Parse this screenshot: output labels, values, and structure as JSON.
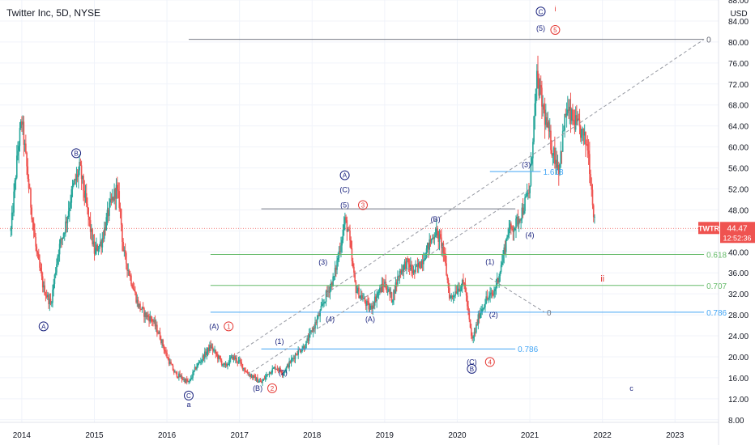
{
  "chart_data": {
    "type": "candlestick",
    "title": "Twitter Inc, 5D, NYSE",
    "currency": "USD",
    "symbol": "TWTR",
    "last_price": "44.47",
    "countdown": "12:52:36",
    "colors": {
      "up": "#26a69a",
      "down": "#ef5350",
      "grid": "#f0f3fa",
      "fib_green": "#66bb6a",
      "fib_blue": "#42a5f5",
      "fib_gray": "#787b86",
      "wave_blue": "#1a237e",
      "wave_red": "#e53935",
      "price_tag": "#ef5350"
    },
    "xlim": [
      2013.7,
      2023.6
    ],
    "ylim": [
      7.5,
      88
    ],
    "x_ticks": [
      {
        "label": "2014",
        "x": 2014.0
      },
      {
        "label": "2015",
        "x": 2015.0
      },
      {
        "label": "2016",
        "x": 2016.0
      },
      {
        "label": "2017",
        "x": 2017.0
      },
      {
        "label": "2018",
        "x": 2018.0
      },
      {
        "label": "2019",
        "x": 2019.0
      },
      {
        "label": "2020",
        "x": 2020.0
      },
      {
        "label": "2021",
        "x": 2021.0
      },
      {
        "label": "2022",
        "x": 2022.0
      },
      {
        "label": "2023",
        "x": 2023.0
      }
    ],
    "y_ticks": [
      "8.00",
      "12.00",
      "16.00",
      "20.00",
      "24.00",
      "28.00",
      "32.00",
      "36.00",
      "40.00",
      "44.00",
      "48.00",
      "52.00",
      "56.00",
      "60.00",
      "64.00",
      "68.00",
      "72.00",
      "76.00",
      "80.00",
      "84.00",
      "88.00"
    ],
    "price_path": [
      [
        2013.85,
        44
      ],
      [
        2013.95,
        60
      ],
      [
        2014.0,
        65
      ],
      [
        2014.1,
        52
      ],
      [
        2014.2,
        40
      ],
      [
        2014.3,
        33
      ],
      [
        2014.4,
        30
      ],
      [
        2014.5,
        40
      ],
      [
        2014.6,
        45
      ],
      [
        2014.7,
        52
      ],
      [
        2014.8,
        56
      ],
      [
        2014.9,
        48
      ],
      [
        2015.0,
        40
      ],
      [
        2015.1,
        42
      ],
      [
        2015.2,
        48
      ],
      [
        2015.3,
        52
      ],
      [
        2015.35,
        49
      ],
      [
        2015.4,
        40
      ],
      [
        2015.5,
        35
      ],
      [
        2015.6,
        30
      ],
      [
        2015.7,
        28
      ],
      [
        2015.8,
        27
      ],
      [
        2015.9,
        24
      ],
      [
        2016.0,
        20
      ],
      [
        2016.1,
        17
      ],
      [
        2016.2,
        16
      ],
      [
        2016.3,
        15
      ],
      [
        2016.4,
        18
      ],
      [
        2016.5,
        20
      ],
      [
        2016.6,
        22
      ],
      [
        2016.7,
        20
      ],
      [
        2016.8,
        18
      ],
      [
        2016.9,
        20
      ],
      [
        2017.0,
        19
      ],
      [
        2017.1,
        17
      ],
      [
        2017.2,
        16
      ],
      [
        2017.3,
        15
      ],
      [
        2017.4,
        17
      ],
      [
        2017.5,
        18
      ],
      [
        2017.6,
        17
      ],
      [
        2017.7,
        19
      ],
      [
        2017.8,
        21
      ],
      [
        2017.9,
        22
      ],
      [
        2018.0,
        25
      ],
      [
        2018.1,
        28
      ],
      [
        2018.2,
        32
      ],
      [
        2018.3,
        35
      ],
      [
        2018.4,
        42
      ],
      [
        2018.45,
        46
      ],
      [
        2018.5,
        44
      ],
      [
        2018.55,
        38
      ],
      [
        2018.6,
        33
      ],
      [
        2018.7,
        31
      ],
      [
        2018.8,
        29
      ],
      [
        2018.9,
        32
      ],
      [
        2019.0,
        34
      ],
      [
        2019.1,
        31
      ],
      [
        2019.2,
        36
      ],
      [
        2019.3,
        38
      ],
      [
        2019.4,
        36
      ],
      [
        2019.5,
        38
      ],
      [
        2019.6,
        41
      ],
      [
        2019.7,
        44
      ],
      [
        2019.8,
        41
      ],
      [
        2019.9,
        31
      ],
      [
        2020.0,
        33
      ],
      [
        2020.1,
        34
      ],
      [
        2020.2,
        23
      ],
      [
        2020.25,
        25
      ],
      [
        2020.3,
        28
      ],
      [
        2020.4,
        31
      ],
      [
        2020.5,
        32
      ],
      [
        2020.6,
        37
      ],
      [
        2020.7,
        44
      ],
      [
        2020.8,
        45
      ],
      [
        2020.9,
        48
      ],
      [
        2021.0,
        52
      ],
      [
        2021.05,
        64
      ],
      [
        2021.1,
        73
      ],
      [
        2021.2,
        66
      ],
      [
        2021.3,
        60
      ],
      [
        2021.4,
        56
      ],
      [
        2021.5,
        67
      ],
      [
        2021.6,
        65
      ],
      [
        2021.7,
        63
      ],
      [
        2021.8,
        60
      ],
      [
        2021.85,
        52
      ],
      [
        2021.9,
        44.47
      ]
    ],
    "horizontal_levels": [
      {
        "y": 80.5,
        "x1": 2016.3,
        "x2": 2023.4,
        "color": "gray",
        "label": "0"
      },
      {
        "y": 48.2,
        "x1": 2017.3,
        "x2": 2020.8,
        "color": "gray",
        "label": ""
      },
      {
        "y": 39.5,
        "x1": 2016.6,
        "x2": 2023.4,
        "color": "green",
        "label": "0.618"
      },
      {
        "y": 33.6,
        "x1": 2016.6,
        "x2": 2023.4,
        "color": "green",
        "label": "0.707"
      },
      {
        "y": 28.5,
        "x1": 2016.6,
        "x2": 2023.4,
        "color": "blue",
        "label": "0.786"
      },
      {
        "y": 21.5,
        "x1": 2017.3,
        "x2": 2020.8,
        "color": "blue",
        "label": "0.786"
      },
      {
        "y": 55.3,
        "x1": 2020.45,
        "x2": 2021.15,
        "color": "blue",
        "label": "1.618"
      }
    ],
    "dashed_lines": [
      {
        "from": [
          2016.9,
          20
        ],
        "to": [
          2023.4,
          80.5
        ],
        "label": "0"
      },
      {
        "from": [
          2017.1,
          16.5
        ],
        "to": [
          2021.0,
          52
        ],
        "label": ""
      },
      {
        "from": [
          2020.45,
          35
        ],
        "to": [
          2021.2,
          28.5
        ],
        "label": "0"
      }
    ],
    "annotations": [
      {
        "text": "C",
        "x": 2021.15,
        "y": 85.8,
        "color": "blue",
        "circle": true
      },
      {
        "text": "i",
        "x": 2021.35,
        "y": 86.3,
        "color": "red",
        "circle": false
      },
      {
        "text": "(5)",
        "x": 2021.15,
        "y": 82.6,
        "color": "blue",
        "circle": false
      },
      {
        "text": "5",
        "x": 2021.35,
        "y": 82.3,
        "color": "red",
        "circle": true
      },
      {
        "text": "B",
        "x": 2014.75,
        "y": 58.8,
        "color": "blue",
        "circle": true
      },
      {
        "text": "A",
        "x": 2014.3,
        "y": 25.8,
        "color": "blue",
        "circle": true
      },
      {
        "text": "A",
        "x": 2018.45,
        "y": 54.6,
        "color": "blue",
        "circle": true
      },
      {
        "text": "(C)",
        "x": 2018.45,
        "y": 51.8,
        "color": "blue",
        "circle": false
      },
      {
        "text": "(5)",
        "x": 2018.45,
        "y": 48.9,
        "color": "blue",
        "circle": false
      },
      {
        "text": "3",
        "x": 2018.7,
        "y": 48.9,
        "color": "red",
        "circle": true
      },
      {
        "text": "(3)",
        "x": 2018.15,
        "y": 38.0,
        "color": "blue",
        "circle": false
      },
      {
        "text": "(4)",
        "x": 2018.25,
        "y": 27.2,
        "color": "blue",
        "circle": false
      },
      {
        "text": "(A)",
        "x": 2018.8,
        "y": 27.2,
        "color": "blue",
        "circle": false
      },
      {
        "text": "(A)",
        "x": 2016.65,
        "y": 25.8,
        "color": "blue",
        "circle": false
      },
      {
        "text": "1",
        "x": 2016.85,
        "y": 25.8,
        "color": "red",
        "circle": true
      },
      {
        "text": "(1)",
        "x": 2017.55,
        "y": 22.9,
        "color": "blue",
        "circle": false
      },
      {
        "text": "(2)",
        "x": 2017.6,
        "y": 17.0,
        "color": "blue",
        "circle": false
      },
      {
        "text": "(B)",
        "x": 2017.25,
        "y": 14.0,
        "color": "blue",
        "circle": false
      },
      {
        "text": "2",
        "x": 2017.45,
        "y": 14.0,
        "color": "red",
        "circle": true
      },
      {
        "text": "C",
        "x": 2016.3,
        "y": 12.6,
        "color": "blue",
        "circle": true
      },
      {
        "text": "a",
        "x": 2016.3,
        "y": 10.9,
        "color": "blue",
        "circle": false
      },
      {
        "text": "(B)",
        "x": 2019.7,
        "y": 46.2,
        "color": "blue",
        "circle": false
      },
      {
        "text": "(1)",
        "x": 2020.45,
        "y": 38.1,
        "color": "blue",
        "circle": false
      },
      {
        "text": "(2)",
        "x": 2020.5,
        "y": 28.0,
        "color": "blue",
        "circle": false
      },
      {
        "text": "(C)",
        "x": 2020.2,
        "y": 19.0,
        "color": "blue",
        "circle": false
      },
      {
        "text": "B",
        "x": 2020.2,
        "y": 17.7,
        "color": "blue",
        "circle": true
      },
      {
        "text": "4",
        "x": 2020.45,
        "y": 19.0,
        "color": "red",
        "circle": true
      },
      {
        "text": "(3)",
        "x": 2020.95,
        "y": 56.6,
        "color": "blue",
        "circle": false
      },
      {
        "text": "(4)",
        "x": 2021.0,
        "y": 43.2,
        "color": "blue",
        "circle": false
      },
      {
        "text": "ii",
        "x": 2022.0,
        "y": 34.8,
        "color": "red",
        "circle": false
      },
      {
        "text": "c",
        "x": 2022.4,
        "y": 14.0,
        "color": "blue",
        "circle": false
      }
    ]
  }
}
